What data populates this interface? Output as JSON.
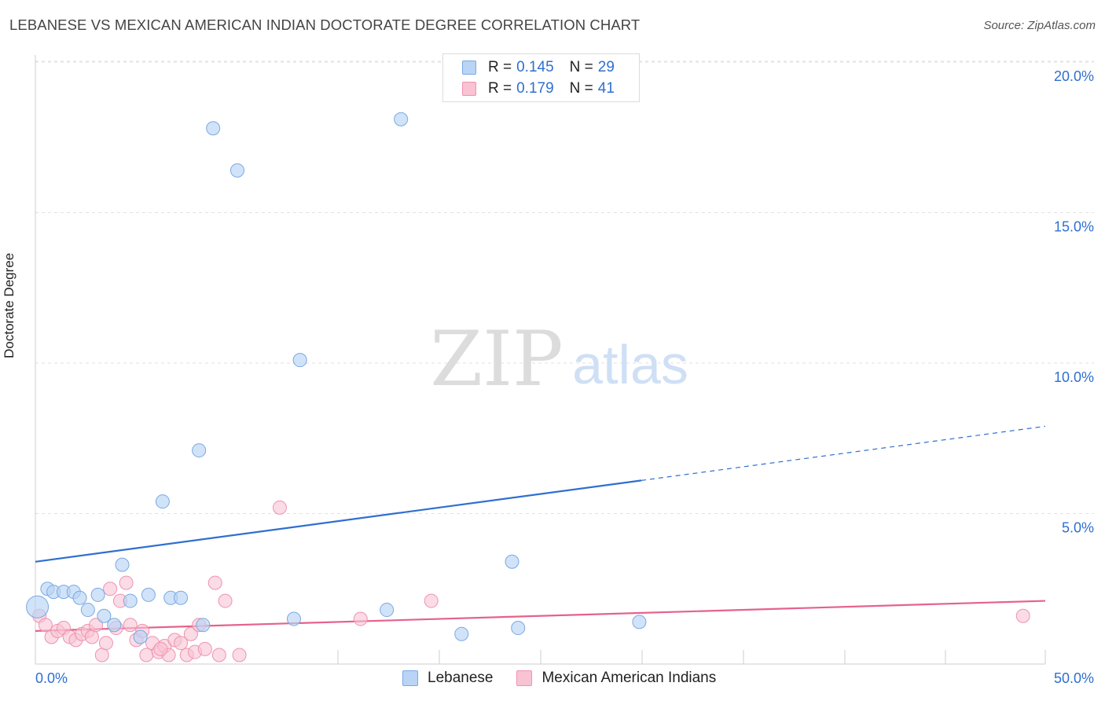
{
  "header": {
    "title": "LEBANESE VS MEXICAN AMERICAN INDIAN DOCTORATE DEGREE CORRELATION CHART",
    "source": "Source: ZipAtlas.com"
  },
  "watermark": {
    "zip": "ZIP",
    "atlas": "atlas"
  },
  "legend_top": {
    "rows": [
      {
        "r_label": "R =",
        "r_value": "0.145",
        "n_label": "N =",
        "n_value": "29"
      },
      {
        "r_label": "R =",
        "r_value": "0.179",
        "n_label": "N =",
        "n_value": "41"
      }
    ]
  },
  "legend_bottom": {
    "items": [
      "Lebanese",
      "Mexican American Indians"
    ]
  },
  "colors": {
    "blue_fill": "#b9d4f5",
    "blue_stroke": "#7aa9e3",
    "blue_line": "#2f6fd0",
    "pink_fill": "#f9c3d3",
    "pink_stroke": "#ee93b0",
    "pink_line": "#e5628b",
    "tick_text": "#2f6fd0",
    "grid": "#e2e2e2"
  },
  "chart_data": {
    "type": "scatter",
    "title": "LEBANESE VS MEXICAN AMERICAN INDIAN DOCTORATE DEGREE CORRELATION CHART",
    "xlabel": "",
    "ylabel": "Doctorate Degree",
    "xlim": [
      0,
      50
    ],
    "ylim": [
      0,
      20.5
    ],
    "x_tick_labels": [
      "0.0%",
      "50.0%"
    ],
    "y_ticks": [
      5,
      10,
      15,
      20
    ],
    "y_tick_labels": [
      "5.0%",
      "10.0%",
      "15.0%",
      "20.0%"
    ],
    "grid": true,
    "legend_position": "top-center",
    "series": [
      {
        "name": "Lebanese",
        "R": 0.145,
        "N": 29,
        "points": [
          [
            0.1,
            1.9
          ],
          [
            0.6,
            2.5
          ],
          [
            0.9,
            2.4
          ],
          [
            1.4,
            2.4
          ],
          [
            1.9,
            2.4
          ],
          [
            2.2,
            2.2
          ],
          [
            2.6,
            1.8
          ],
          [
            3.1,
            2.3
          ],
          [
            3.4,
            1.6
          ],
          [
            3.9,
            1.3
          ],
          [
            4.3,
            3.3
          ],
          [
            4.7,
            2.1
          ],
          [
            5.2,
            0.9
          ],
          [
            5.6,
            2.3
          ],
          [
            6.3,
            5.4
          ],
          [
            6.7,
            2.2
          ],
          [
            7.2,
            2.2
          ],
          [
            8.1,
            7.1
          ],
          [
            8.3,
            1.3
          ],
          [
            8.8,
            17.8
          ],
          [
            10.0,
            16.4
          ],
          [
            13.1,
            10.1
          ],
          [
            12.8,
            1.5
          ],
          [
            17.4,
            1.8
          ],
          [
            18.1,
            18.1
          ],
          [
            21.1,
            1.0
          ],
          [
            23.6,
            3.4
          ],
          [
            23.9,
            1.2
          ],
          [
            29.9,
            1.4
          ]
        ],
        "trend": {
          "x0": 0,
          "y0": 3.4,
          "x1": 30,
          "y1": 6.1,
          "x_dash_end": 50,
          "y_dash_end": 7.9
        }
      },
      {
        "name": "Mexican American Indians",
        "R": 0.179,
        "N": 41,
        "points": [
          [
            0.2,
            1.6
          ],
          [
            0.5,
            1.3
          ],
          [
            0.8,
            0.9
          ],
          [
            1.1,
            1.1
          ],
          [
            1.4,
            1.2
          ],
          [
            1.7,
            0.9
          ],
          [
            2.0,
            0.8
          ],
          [
            2.3,
            1.0
          ],
          [
            2.6,
            1.1
          ],
          [
            2.8,
            0.9
          ],
          [
            3.0,
            1.3
          ],
          [
            3.3,
            0.3
          ],
          [
            3.5,
            0.7
          ],
          [
            3.7,
            2.5
          ],
          [
            4.0,
            1.2
          ],
          [
            4.2,
            2.1
          ],
          [
            4.5,
            2.7
          ],
          [
            4.7,
            1.3
          ],
          [
            5.0,
            0.8
          ],
          [
            5.3,
            1.1
          ],
          [
            5.5,
            0.3
          ],
          [
            5.8,
            0.7
          ],
          [
            6.1,
            0.4
          ],
          [
            6.4,
            0.6
          ],
          [
            6.6,
            0.3
          ],
          [
            6.9,
            0.8
          ],
          [
            7.2,
            0.7
          ],
          [
            7.5,
            0.3
          ],
          [
            7.7,
            1.0
          ],
          [
            7.9,
            0.4
          ],
          [
            8.1,
            1.3
          ],
          [
            8.4,
            0.5
          ],
          [
            8.9,
            2.7
          ],
          [
            9.1,
            0.3
          ],
          [
            9.4,
            2.1
          ],
          [
            10.1,
            0.3
          ],
          [
            12.1,
            5.2
          ],
          [
            16.1,
            1.5
          ],
          [
            19.6,
            2.1
          ],
          [
            48.9,
            1.6
          ],
          [
            6.2,
            0.5
          ]
        ],
        "trend": {
          "x0": 0,
          "y0": 1.1,
          "x1": 50,
          "y1": 2.1
        }
      }
    ]
  }
}
